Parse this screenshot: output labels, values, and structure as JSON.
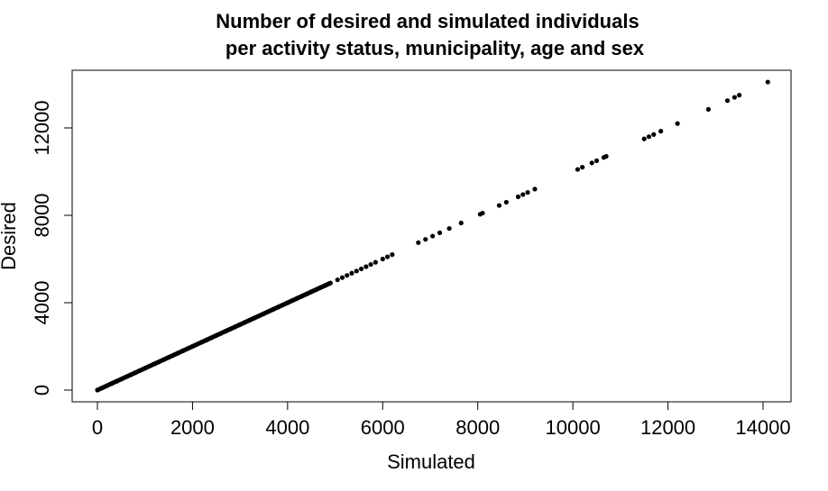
{
  "chart_data": {
    "type": "scatter",
    "title_line1": "Number of desired and simulated individuals",
    "title_line2": "per activity status, municipality, age and sex",
    "xlabel": "Simulated",
    "ylabel": "Desired",
    "xlim": [
      0,
      14000
    ],
    "ylim": [
      0,
      14000
    ],
    "xticks": [
      0,
      2000,
      4000,
      6000,
      8000,
      10000,
      12000,
      14000
    ],
    "yticks": [
      0,
      4000,
      8000,
      12000
    ],
    "grid": false,
    "legend": "none",
    "point_color": "#000000",
    "series": [
      {
        "points": [
          [
            0,
            0
          ],
          [
            100,
            100
          ],
          [
            200,
            200
          ],
          [
            300,
            300
          ],
          [
            400,
            400
          ],
          [
            500,
            500
          ],
          [
            600,
            600
          ],
          [
            700,
            700
          ],
          [
            800,
            800
          ],
          [
            900,
            900
          ],
          [
            1000,
            1000
          ],
          [
            1100,
            1100
          ],
          [
            1200,
            1200
          ],
          [
            1300,
            1300
          ],
          [
            1400,
            1400
          ],
          [
            1500,
            1500
          ],
          [
            1600,
            1600
          ],
          [
            1700,
            1700
          ],
          [
            1800,
            1800
          ],
          [
            1900,
            1900
          ],
          [
            2000,
            2000
          ],
          [
            2100,
            2100
          ],
          [
            2200,
            2200
          ],
          [
            2300,
            2300
          ],
          [
            2400,
            2400
          ],
          [
            2500,
            2500
          ],
          [
            2600,
            2600
          ],
          [
            2700,
            2700
          ],
          [
            2800,
            2800
          ],
          [
            2900,
            2900
          ],
          [
            3000,
            3000
          ],
          [
            3100,
            3100
          ],
          [
            3200,
            3200
          ],
          [
            3300,
            3300
          ],
          [
            3400,
            3400
          ],
          [
            3500,
            3500
          ],
          [
            3600,
            3600
          ],
          [
            3700,
            3700
          ],
          [
            3800,
            3800
          ],
          [
            3900,
            3900
          ],
          [
            4000,
            4000
          ],
          [
            4100,
            4100
          ],
          [
            4200,
            4200
          ],
          [
            4300,
            4300
          ],
          [
            4400,
            4400
          ],
          [
            4500,
            4500
          ],
          [
            4600,
            4600
          ],
          [
            4700,
            4700
          ],
          [
            4800,
            4800
          ],
          [
            4900,
            4900
          ],
          [
            5050,
            5050
          ],
          [
            5150,
            5150
          ],
          [
            5250,
            5250
          ],
          [
            5350,
            5350
          ],
          [
            5450,
            5450
          ],
          [
            5550,
            5550
          ],
          [
            5650,
            5650
          ],
          [
            5750,
            5750
          ],
          [
            5850,
            5850
          ],
          [
            6000,
            6000
          ],
          [
            6100,
            6100
          ],
          [
            6200,
            6200
          ],
          [
            6750,
            6750
          ],
          [
            6900,
            6900
          ],
          [
            7050,
            7050
          ],
          [
            7200,
            7200
          ],
          [
            7400,
            7400
          ],
          [
            7650,
            7650
          ],
          [
            8050,
            8050
          ],
          [
            8100,
            8100
          ],
          [
            8450,
            8450
          ],
          [
            8600,
            8600
          ],
          [
            8850,
            8850
          ],
          [
            8950,
            8950
          ],
          [
            9050,
            9050
          ],
          [
            9200,
            9200
          ],
          [
            10100,
            10100
          ],
          [
            10200,
            10200
          ],
          [
            10400,
            10400
          ],
          [
            10500,
            10500
          ],
          [
            10650,
            10650
          ],
          [
            10700,
            10700
          ],
          [
            11500,
            11500
          ],
          [
            11600,
            11600
          ],
          [
            11700,
            11700
          ],
          [
            11850,
            11850
          ],
          [
            12200,
            12200
          ],
          [
            12850,
            12850
          ],
          [
            13250,
            13250
          ],
          [
            13400,
            13400
          ],
          [
            13500,
            13500
          ],
          [
            14100,
            14100
          ]
        ]
      }
    ]
  }
}
